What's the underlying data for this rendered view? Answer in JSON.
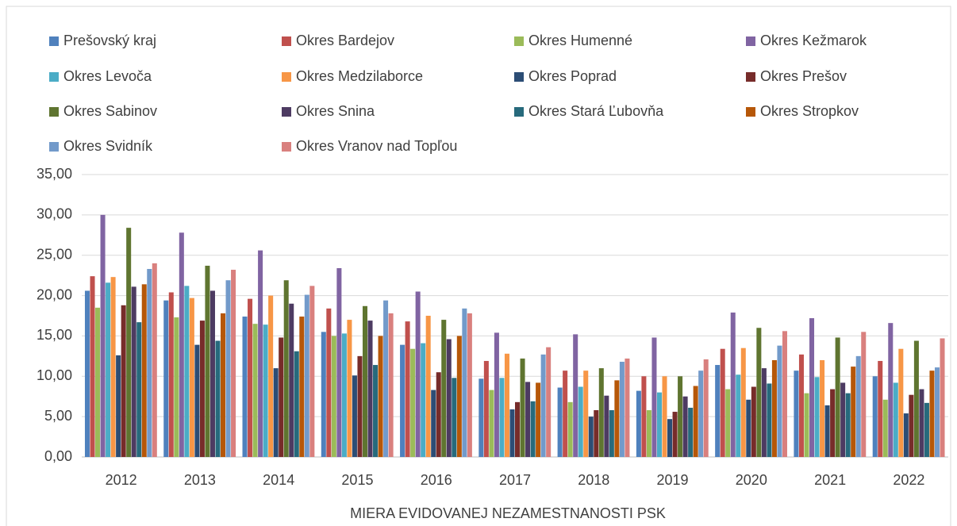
{
  "chart_data": {
    "type": "bar",
    "x_label": "MIERA EVIDOVANEJ NEZAMESTNANOSTI PSK",
    "categories": [
      "2012",
      "2013",
      "2014",
      "2015",
      "2016",
      "2017",
      "2018",
      "2019",
      "2020",
      "2021",
      "2022"
    ],
    "series": [
      {
        "name": "Prešovský kraj",
        "color": "#4f81bd",
        "values": [
          20.6,
          19.4,
          17.4,
          15.5,
          13.9,
          9.7,
          8.6,
          8.2,
          11.4,
          10.7,
          10.0
        ]
      },
      {
        "name": "Okres Bardejov",
        "color": "#c0504d",
        "values": [
          22.4,
          20.4,
          19.6,
          18.4,
          16.8,
          11.9,
          10.7,
          10.0,
          13.4,
          12.7,
          11.9
        ]
      },
      {
        "name": "Okres Humenné",
        "color": "#9bbb59",
        "values": [
          18.5,
          17.3,
          16.5,
          15.0,
          13.4,
          8.3,
          6.8,
          5.8,
          8.4,
          7.9,
          7.1
        ]
      },
      {
        "name": "Okres Kežmarok",
        "color": "#8064a2",
        "values": [
          30.0,
          27.8,
          25.6,
          23.4,
          20.5,
          15.4,
          15.2,
          14.8,
          17.9,
          17.2,
          16.6
        ]
      },
      {
        "name": "Okres Levoča",
        "color": "#4bacc6",
        "values": [
          21.6,
          21.2,
          16.4,
          15.3,
          14.1,
          9.8,
          8.7,
          8.0,
          10.2,
          9.9,
          9.2
        ]
      },
      {
        "name": "Okres Medzilaborce",
        "color": "#f79646",
        "values": [
          22.3,
          19.7,
          20.0,
          17.0,
          17.5,
          12.8,
          10.7,
          10.0,
          13.5,
          12.0,
          13.4
        ]
      },
      {
        "name": "Okres Poprad",
        "color": "#2c4d75",
        "values": [
          12.6,
          13.9,
          11.0,
          10.1,
          8.3,
          5.9,
          5.0,
          4.7,
          7.1,
          6.4,
          5.4
        ]
      },
      {
        "name": "Okres Prešov",
        "color": "#772c2a",
        "values": [
          18.8,
          16.9,
          14.8,
          12.5,
          10.5,
          6.8,
          5.8,
          5.6,
          8.7,
          8.4,
          7.7
        ]
      },
      {
        "name": "Okres Sabinov",
        "color": "#5f7530",
        "values": [
          28.4,
          23.7,
          21.9,
          18.7,
          17.0,
          12.2,
          11.0,
          10.0,
          16.0,
          14.8,
          14.4
        ]
      },
      {
        "name": "Okres Snina",
        "color": "#4d3b62",
        "values": [
          21.1,
          20.6,
          19.0,
          16.9,
          14.6,
          9.3,
          7.6,
          7.5,
          11.0,
          9.2,
          8.4
        ]
      },
      {
        "name": "Okres Stará Ľubovňa",
        "color": "#276a7c",
        "values": [
          16.7,
          14.4,
          13.1,
          11.4,
          9.8,
          6.9,
          5.8,
          6.1,
          9.1,
          7.9,
          6.7
        ]
      },
      {
        "name": "Okres Stropkov",
        "color": "#b65708",
        "values": [
          21.4,
          17.8,
          17.4,
          15.0,
          15.0,
          9.2,
          9.5,
          8.8,
          12.0,
          11.2,
          10.7
        ]
      },
      {
        "name": "Okres Svidník",
        "color": "#729aca",
        "values": [
          23.3,
          21.9,
          20.1,
          19.4,
          18.4,
          12.7,
          11.8,
          10.7,
          13.8,
          12.5,
          11.1
        ]
      },
      {
        "name": "Okres Vranov nad Topľou",
        "color": "#d9807e",
        "values": [
          24.0,
          23.2,
          21.2,
          17.8,
          17.8,
          13.6,
          12.2,
          12.1,
          15.6,
          15.5,
          14.7
        ]
      }
    ],
    "ylim": [
      0,
      35
    ],
    "yticks": [
      {
        "value": 0,
        "label": "0,00"
      },
      {
        "value": 5,
        "label": "5,00"
      },
      {
        "value": 10,
        "label": "10,00"
      },
      {
        "value": 15,
        "label": "15,00"
      },
      {
        "value": 20,
        "label": "20,00"
      },
      {
        "value": 25,
        "label": "25,00"
      },
      {
        "value": 30,
        "label": "30,00"
      },
      {
        "value": 35,
        "label": "35,00"
      }
    ],
    "grid": true,
    "legend": "top"
  }
}
